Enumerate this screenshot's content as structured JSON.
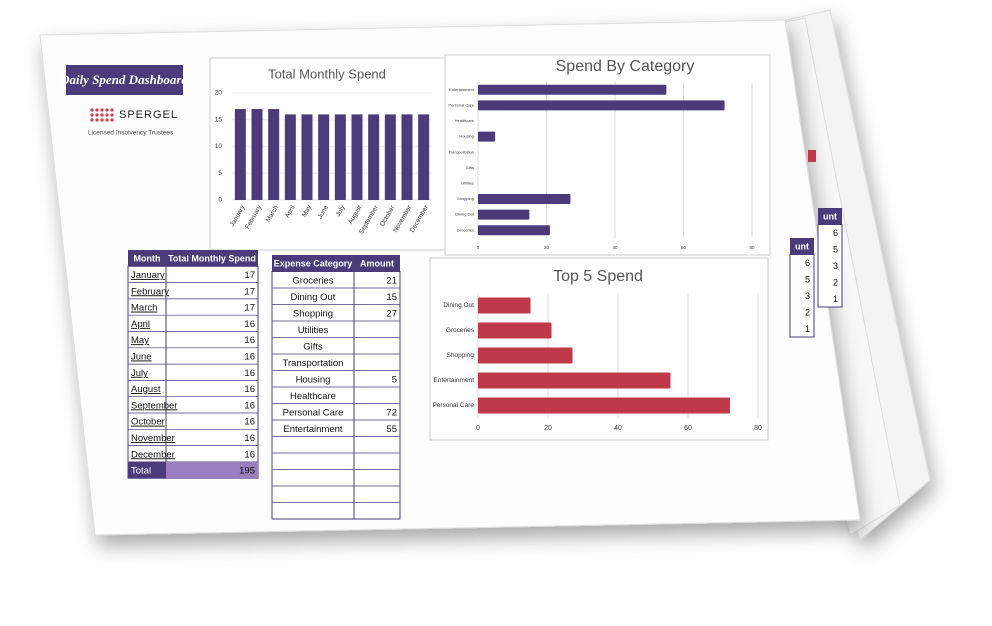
{
  "header": {
    "title": "Daily Spend Dashboard",
    "logo": "SPERGEL",
    "tagline": "Licensed Insolvency Trustees"
  },
  "chart_data": [
    {
      "type": "bar",
      "title": "Total Monthly Spend",
      "color": "#4b3b7a",
      "grid": true,
      "categories": [
        "January",
        "February",
        "March",
        "April",
        "May",
        "June",
        "July",
        "August",
        "September",
        "October",
        "November",
        "December"
      ],
      "values": [
        17,
        17,
        17,
        16,
        16,
        16,
        16,
        16,
        16,
        16,
        16,
        16
      ],
      "ylim": [
        0,
        20
      ],
      "yticks": [
        0,
        5,
        10,
        15,
        20
      ]
    },
    {
      "type": "hbar",
      "title": "Spend By Category",
      "color": "#4b3b7a",
      "grid": true,
      "categories": [
        "Entertainment",
        "Personal Care",
        "Healthcare",
        "Housing",
        "Transportation",
        "Gifts",
        "Utilities",
        "Shopping",
        "Dining Out",
        "Groceries"
      ],
      "values": [
        55,
        72,
        null,
        5,
        null,
        null,
        null,
        27,
        15,
        21
      ],
      "xlim": [
        0,
        80
      ],
      "xticks": [
        0,
        20,
        40,
        60,
        80
      ]
    },
    {
      "type": "hbar",
      "title": "Top 5 Spend",
      "color": "#c0394b",
      "grid": true,
      "categories": [
        "Dining Out",
        "Groceries",
        "Shopping",
        "Entertainment",
        "Personal Care"
      ],
      "values": [
        15,
        21,
        27,
        55,
        72
      ],
      "xlim": [
        0,
        80
      ],
      "xticks": [
        0,
        20,
        40,
        60,
        80
      ]
    }
  ],
  "tables": [
    {
      "header": [
        "Month",
        "Total Monthly Spend"
      ],
      "rows": [
        [
          "January",
          17
        ],
        [
          "February",
          17
        ],
        [
          "March",
          17
        ],
        [
          "April",
          16
        ],
        [
          "May",
          16
        ],
        [
          "June",
          16
        ],
        [
          "July",
          16
        ],
        [
          "August",
          16
        ],
        [
          "September",
          16
        ],
        [
          "October",
          16
        ],
        [
          "November",
          16
        ],
        [
          "December",
          16
        ]
      ],
      "total": {
        "label": "Total",
        "value": 195
      }
    },
    {
      "header": [
        "Expense Category",
        "Amount"
      ],
      "rows": [
        [
          "Groceries",
          21
        ],
        [
          "Dining Out",
          15
        ],
        [
          "Shopping",
          27
        ],
        [
          "Utilities",
          null
        ],
        [
          "Gifts",
          null
        ],
        [
          "Transportation",
          null
        ],
        [
          "Housing",
          5
        ],
        [
          "Healthcare",
          null
        ],
        [
          "Personal Care",
          72
        ],
        [
          "Entertainment",
          55
        ]
      ]
    }
  ],
  "back_pages": [
    {
      "header": "unt",
      "rows": [
        6,
        5,
        3,
        2,
        1
      ]
    },
    {
      "header": "unt",
      "rows": [
        6,
        5,
        3,
        2,
        1
      ]
    }
  ]
}
